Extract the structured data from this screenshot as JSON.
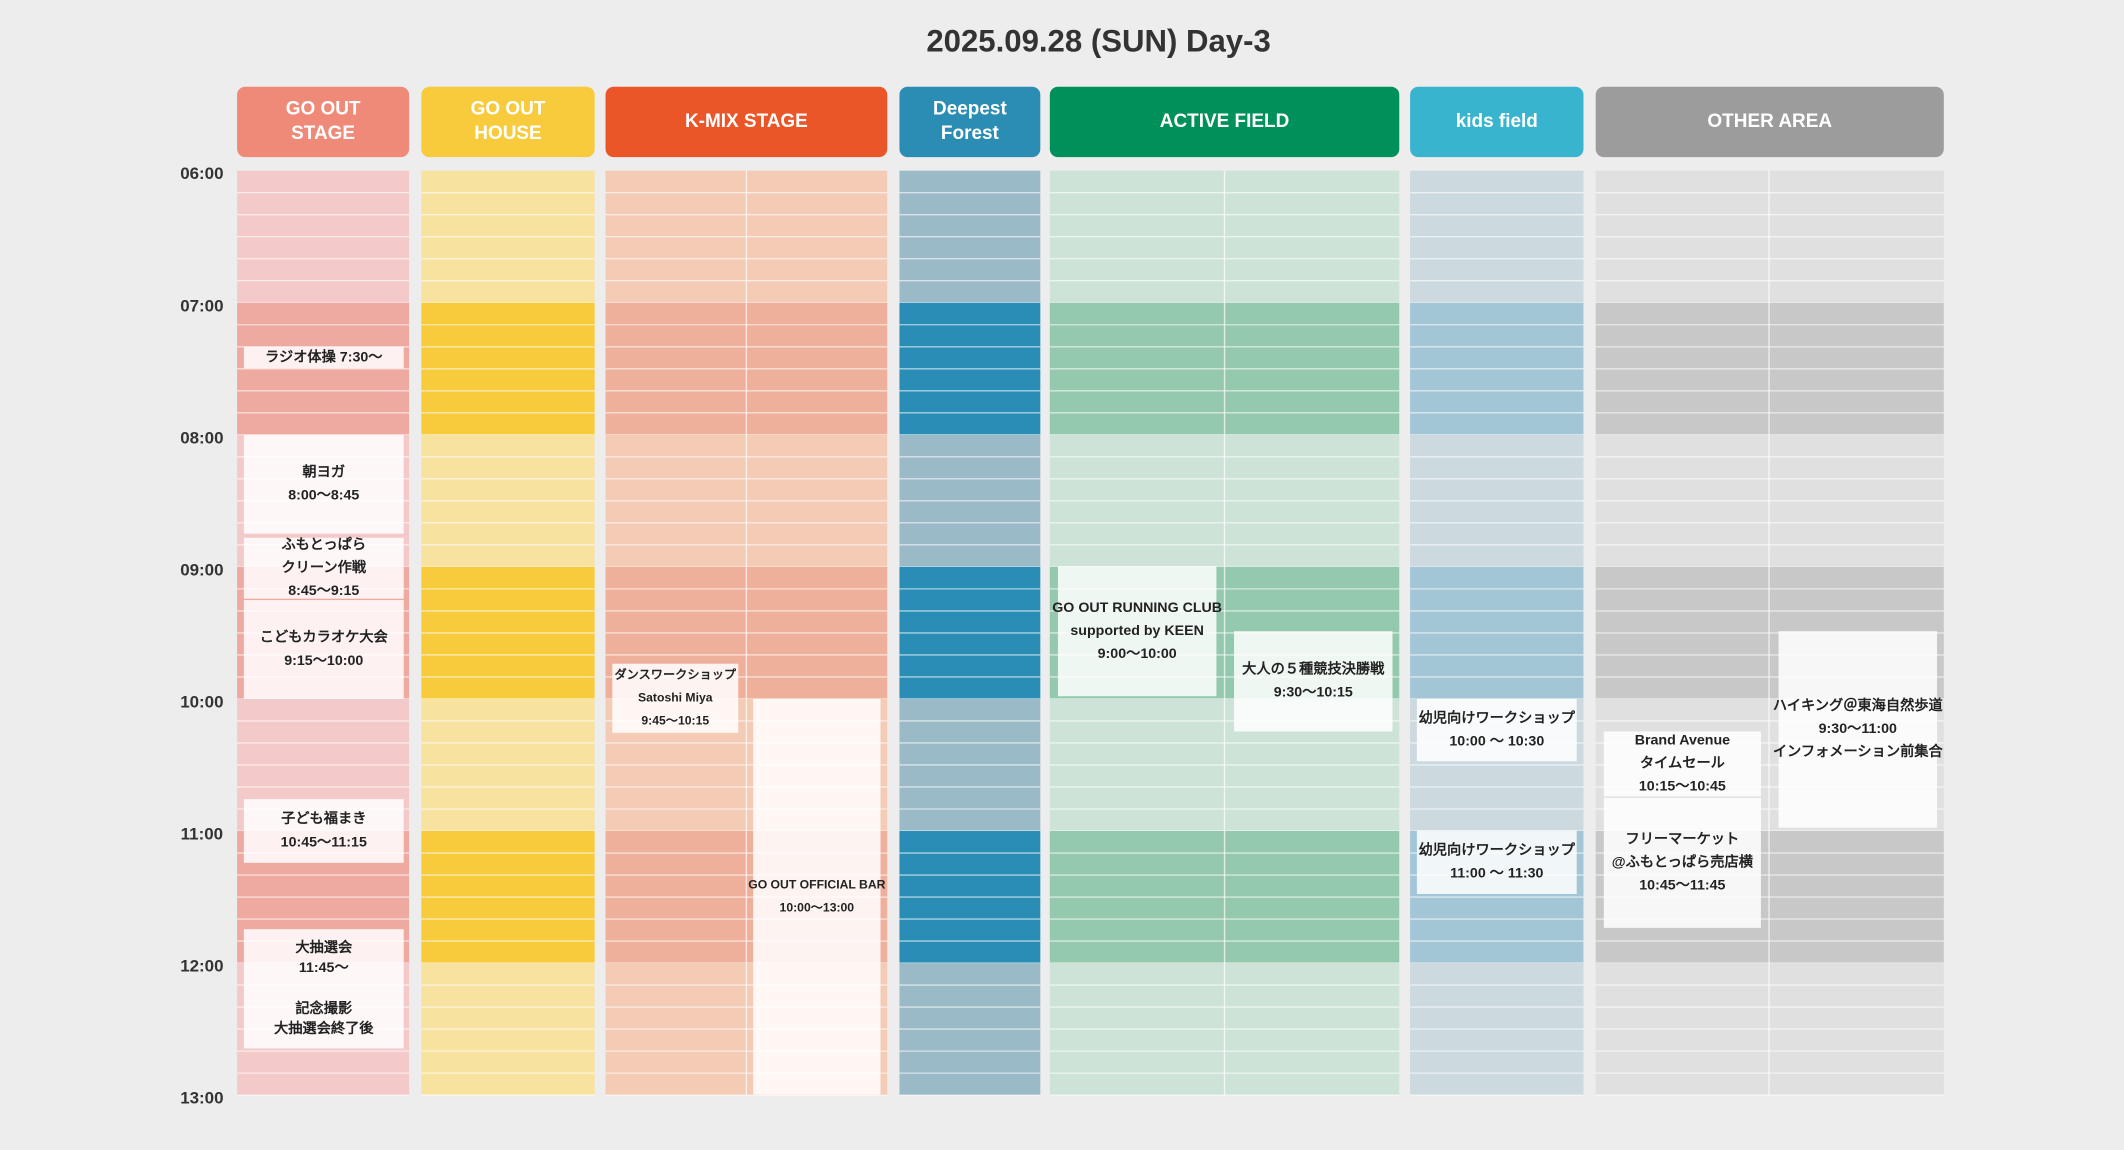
{
  "title": "2025.09.28 (SUN) Day-3",
  "times": [
    "06:00",
    "07:00",
    "08:00",
    "09:00",
    "10:00",
    "11:00",
    "12:00",
    "13:00"
  ],
  "columns": [
    {
      "header": [
        "GO OUT",
        "STAGE"
      ],
      "events": [
        {
          "lines": [
            "ラジオ体操 7:30〜"
          ]
        },
        {
          "lines": [
            "朝ヨガ",
            "8:00〜8:45"
          ]
        },
        {
          "lines": [
            "ふもとっぱら",
            "クリーン作戦",
            "8:45〜9:15"
          ]
        },
        {
          "lines": [
            "こどもカラオケ大会",
            "9:15〜10:00"
          ]
        },
        {
          "lines": [
            "子ども福まき",
            "10:45〜11:15"
          ]
        },
        {
          "lines": [
            "大抽選会",
            "11:45〜",
            "",
            "記念撮影",
            "大抽選会終了後"
          ]
        }
      ]
    },
    {
      "header": [
        "GO OUT",
        "HOUSE"
      ],
      "events": []
    },
    {
      "header": [
        "K-MIX STAGE"
      ],
      "events": [
        {
          "lines": [
            "ダンスワークショップ",
            "Satoshi Miya",
            "9:45〜10:15"
          ]
        },
        {
          "lines": [
            "GO OUT OFFICIAL BAR",
            "10:00〜13:00"
          ]
        }
      ]
    },
    {
      "header": [
        "Deepest",
        "Forest"
      ],
      "events": []
    },
    {
      "header": [
        "ACTIVE FIELD"
      ],
      "events": [
        {
          "lines": [
            "GO OUT RUNNING CLUB",
            "supported by KEEN",
            "9:00〜10:00"
          ]
        },
        {
          "lines": [
            "大人の５種競技決勝戦",
            "9:30〜10:15"
          ]
        }
      ]
    },
    {
      "header": [
        "kids field"
      ],
      "events": [
        {
          "lines": [
            "幼児向けワークショップ",
            "10:00 〜 10:30"
          ]
        },
        {
          "lines": [
            "幼児向けワークショップ",
            "11:00 〜 11:30"
          ]
        }
      ]
    },
    {
      "header": [
        "OTHER AREA"
      ],
      "events": [
        {
          "lines": [
            "Brand Avenue",
            "タイムセール",
            "10:15〜10:45"
          ]
        },
        {
          "lines": [
            "フリーマーケット",
            "@ふもとっぱら売店横",
            "10:45〜11:45"
          ]
        },
        {
          "lines": [
            "ハイキング＠東海自然歩道",
            "9:30〜11:00",
            "インフォメーション前集合"
          ]
        }
      ]
    }
  ]
}
